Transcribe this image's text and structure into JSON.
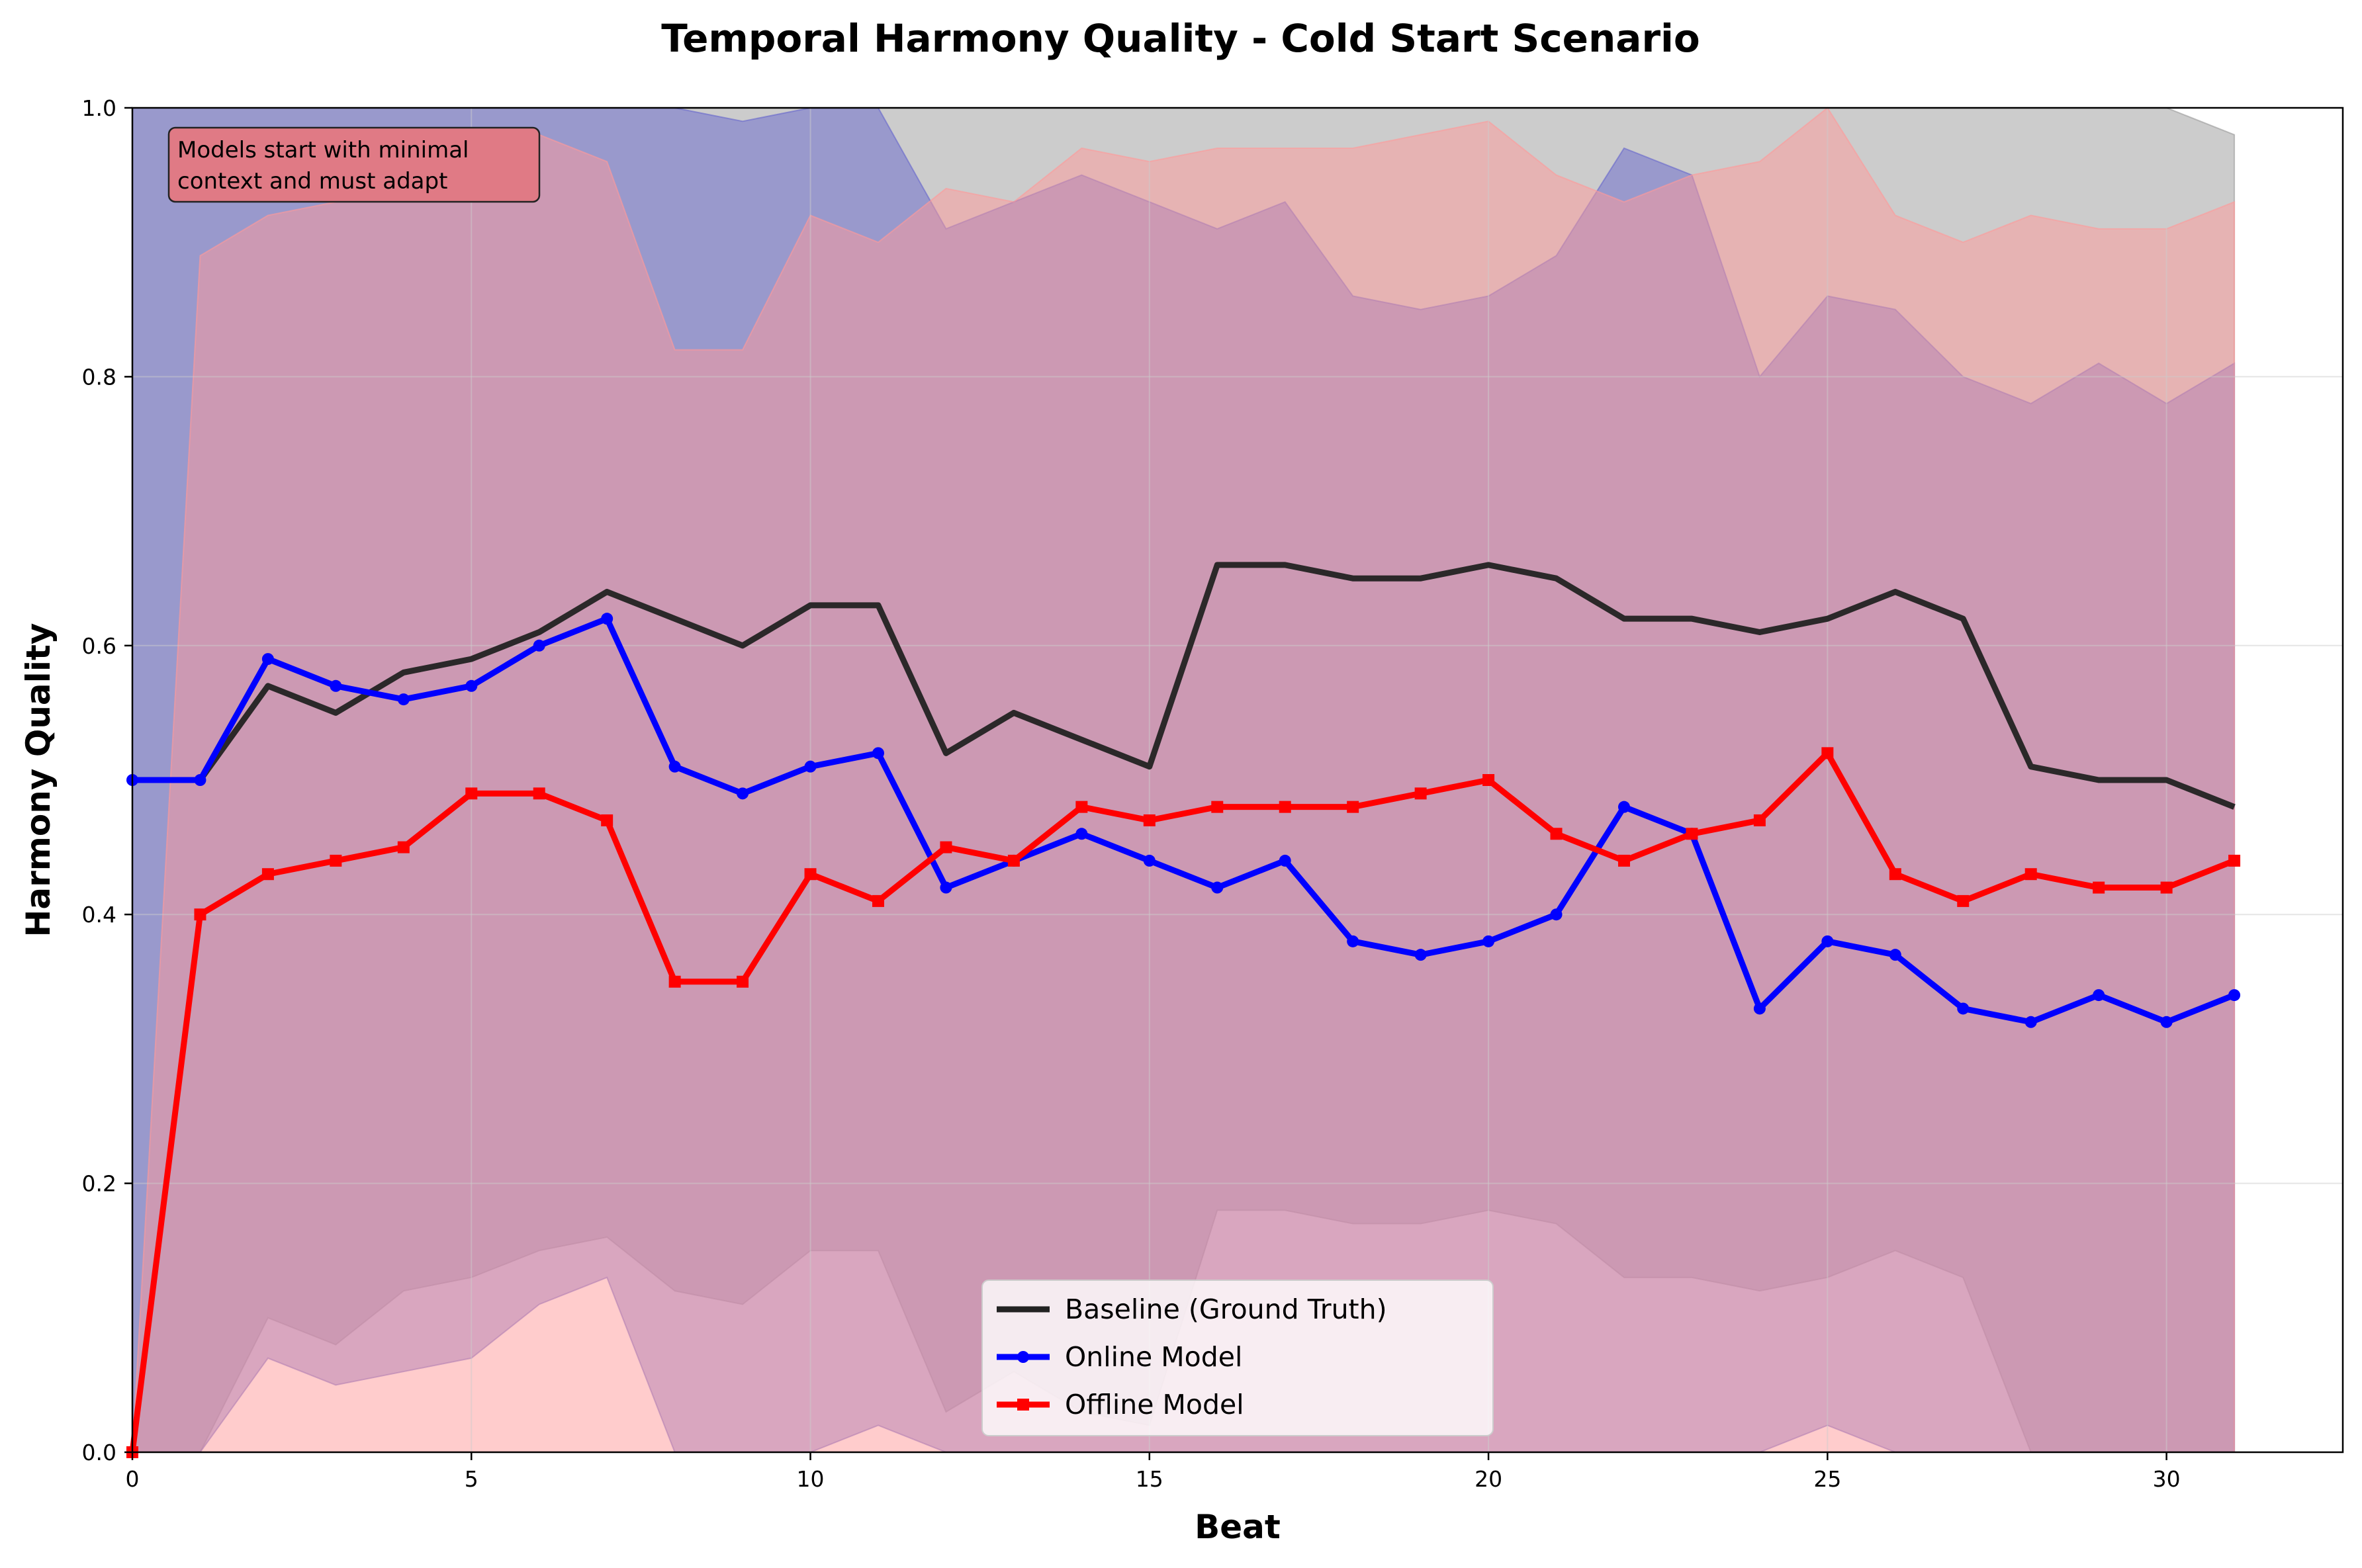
{
  "chart_data": {
    "type": "line",
    "title": "Temporal Harmony Quality - Cold Start Scenario",
    "xlabel": "Beat",
    "ylabel": "Harmony Quality",
    "xlim": [
      0,
      32.6
    ],
    "ylim": [
      0,
      1.0
    ],
    "xticks": [
      "0",
      "5",
      "10",
      "15",
      "20",
      "25",
      "30"
    ],
    "yticks": [
      "0.0",
      "0.2",
      "0.4",
      "0.6",
      "0.8",
      "1.0"
    ],
    "grid": true,
    "legend_position": "lower-center",
    "annotation": "Models start with minimal\ncontext and must adapt",
    "x": [
      0,
      1,
      2,
      3,
      4,
      5,
      6,
      7,
      8,
      9,
      10,
      11,
      12,
      13,
      14,
      15,
      16,
      17,
      18,
      19,
      20,
      21,
      22,
      23,
      24,
      25,
      26,
      27,
      28,
      29,
      30,
      31
    ],
    "series": [
      {
        "name": "Baseline (Ground Truth)",
        "color": "#222222",
        "marker": "none",
        "values": [
          0.5,
          0.5,
          0.57,
          0.55,
          0.58,
          0.59,
          0.61,
          0.64,
          0.62,
          0.6,
          0.63,
          0.63,
          0.52,
          0.55,
          0.53,
          0.51,
          0.66,
          0.66,
          0.65,
          0.65,
          0.66,
          0.65,
          0.62,
          0.62,
          0.61,
          0.62,
          0.64,
          0.62,
          0.51,
          0.5,
          0.5,
          0.48
        ],
        "band_upper": [
          1.0,
          1.0,
          1.0,
          1.0,
          1.0,
          1.0,
          1.0,
          1.0,
          1.0,
          1.0,
          1.0,
          1.0,
          1.0,
          1.0,
          1.0,
          1.0,
          1.0,
          1.0,
          1.0,
          1.0,
          1.0,
          1.0,
          1.0,
          1.0,
          1.0,
          1.0,
          1.0,
          1.0,
          1.0,
          1.0,
          1.0,
          0.98
        ],
        "band_lower": [
          0.0,
          0.0,
          0.1,
          0.08,
          0.12,
          0.13,
          0.15,
          0.16,
          0.12,
          0.11,
          0.15,
          0.15,
          0.03,
          0.06,
          0.03,
          0.02,
          0.18,
          0.18,
          0.17,
          0.17,
          0.18,
          0.17,
          0.13,
          0.13,
          0.12,
          0.13,
          0.15,
          0.13,
          0.0,
          0.0,
          0.0,
          0.0
        ],
        "band_color": "#999999"
      },
      {
        "name": "Online Model",
        "color": "#0000ff",
        "marker": "circle",
        "values": [
          0.5,
          0.5,
          0.59,
          0.57,
          0.56,
          0.57,
          0.6,
          0.62,
          0.51,
          0.49,
          0.51,
          0.52,
          0.42,
          0.44,
          0.46,
          0.44,
          0.42,
          0.44,
          0.38,
          0.37,
          0.38,
          0.4,
          0.48,
          0.46,
          0.33,
          0.38,
          0.37,
          0.33,
          0.32,
          0.34,
          0.32,
          0.34
        ],
        "band_upper": [
          1.0,
          1.0,
          1.0,
          1.0,
          1.0,
          1.0,
          1.0,
          1.0,
          1.0,
          0.99,
          1.0,
          1.0,
          0.91,
          0.93,
          0.95,
          0.93,
          0.91,
          0.93,
          0.86,
          0.85,
          0.86,
          0.89,
          0.97,
          0.95,
          0.8,
          0.86,
          0.85,
          0.8,
          0.78,
          0.81,
          0.78,
          0.81
        ],
        "band_lower": [
          0.0,
          0.0,
          0.07,
          0.05,
          0.06,
          0.07,
          0.11,
          0.13,
          0.0,
          0.0,
          0.0,
          0.02,
          0.0,
          0.0,
          0.0,
          0.0,
          0.0,
          0.0,
          0.0,
          0.0,
          0.0,
          0.0,
          0.0,
          0.0,
          0.0,
          0.02,
          0.0,
          0.0,
          0.0,
          0.0,
          0.0,
          0.0
        ],
        "band_color": "#6666cc"
      },
      {
        "name": "Offline Model",
        "color": "#ff0000",
        "marker": "square",
        "values": [
          0.0,
          0.4,
          0.43,
          0.44,
          0.45,
          0.49,
          0.49,
          0.47,
          0.35,
          0.35,
          0.43,
          0.41,
          0.45,
          0.44,
          0.48,
          0.47,
          0.48,
          0.48,
          0.48,
          0.49,
          0.5,
          0.46,
          0.44,
          0.46,
          0.47,
          0.52,
          0.43,
          0.41,
          0.43,
          0.42,
          0.42,
          0.44
        ],
        "band_upper": [
          0.0,
          0.89,
          0.92,
          0.93,
          0.94,
          0.98,
          0.98,
          0.96,
          0.82,
          0.82,
          0.92,
          0.9,
          0.94,
          0.93,
          0.97,
          0.96,
          0.97,
          0.97,
          0.97,
          0.98,
          0.99,
          0.95,
          0.93,
          0.95,
          0.96,
          1.0,
          0.92,
          0.9,
          0.92,
          0.91,
          0.91,
          0.93
        ],
        "band_lower": [
          0.0,
          0.0,
          0.0,
          0.0,
          0.0,
          0.0,
          0.0,
          0.0,
          0.0,
          0.0,
          0.0,
          0.0,
          0.0,
          0.0,
          0.0,
          0.0,
          0.0,
          0.0,
          0.0,
          0.0,
          0.0,
          0.0,
          0.0,
          0.0,
          0.0,
          0.0,
          0.0,
          0.0,
          0.0,
          0.0,
          0.0,
          0.0
        ],
        "band_color": "#ff9999"
      }
    ]
  }
}
